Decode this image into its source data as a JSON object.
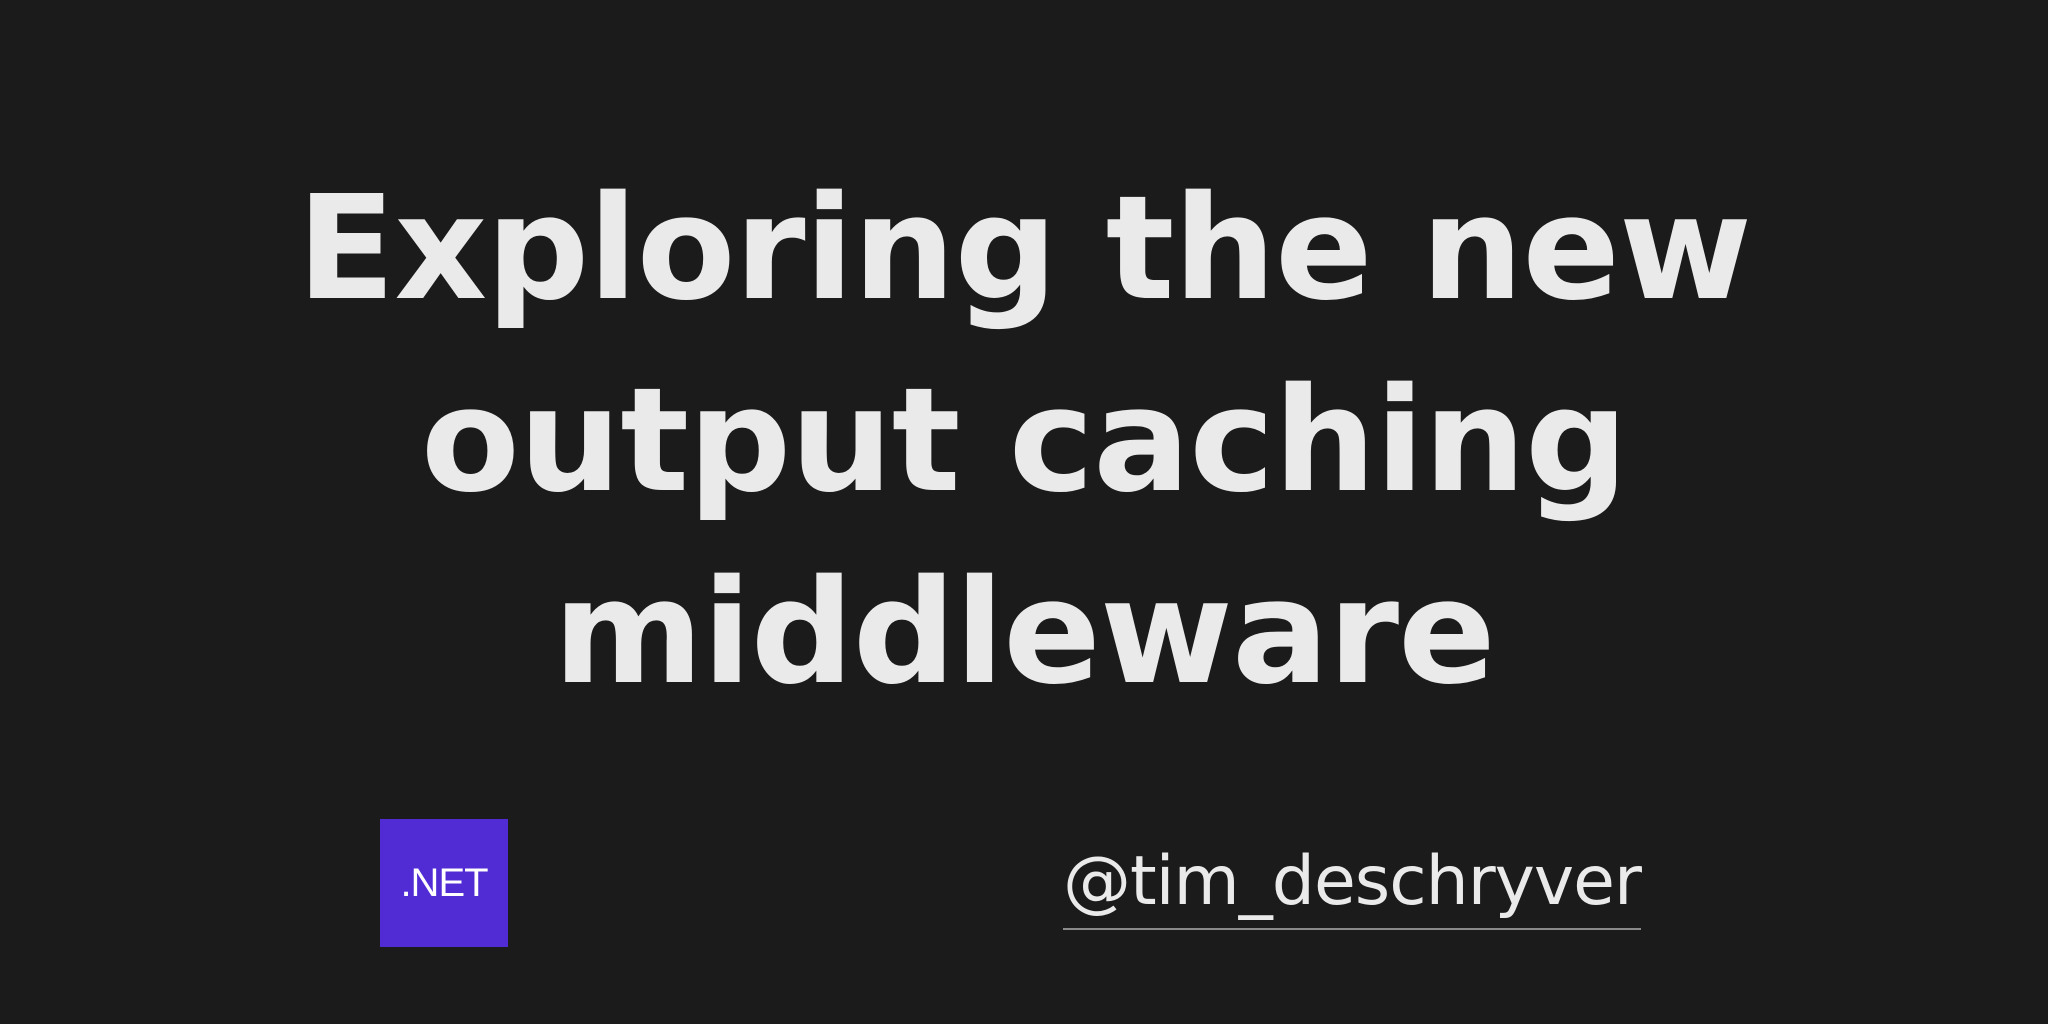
{
  "title": {
    "lines": [
      "Exploring the new",
      "output caching",
      "middleware"
    ]
  },
  "logo": {
    "text": ".NET",
    "color": "#512bd4"
  },
  "author": {
    "handle": "@tim_deschryver"
  },
  "colors": {
    "background": "#1b1b1b",
    "text": "#eaeaea"
  }
}
